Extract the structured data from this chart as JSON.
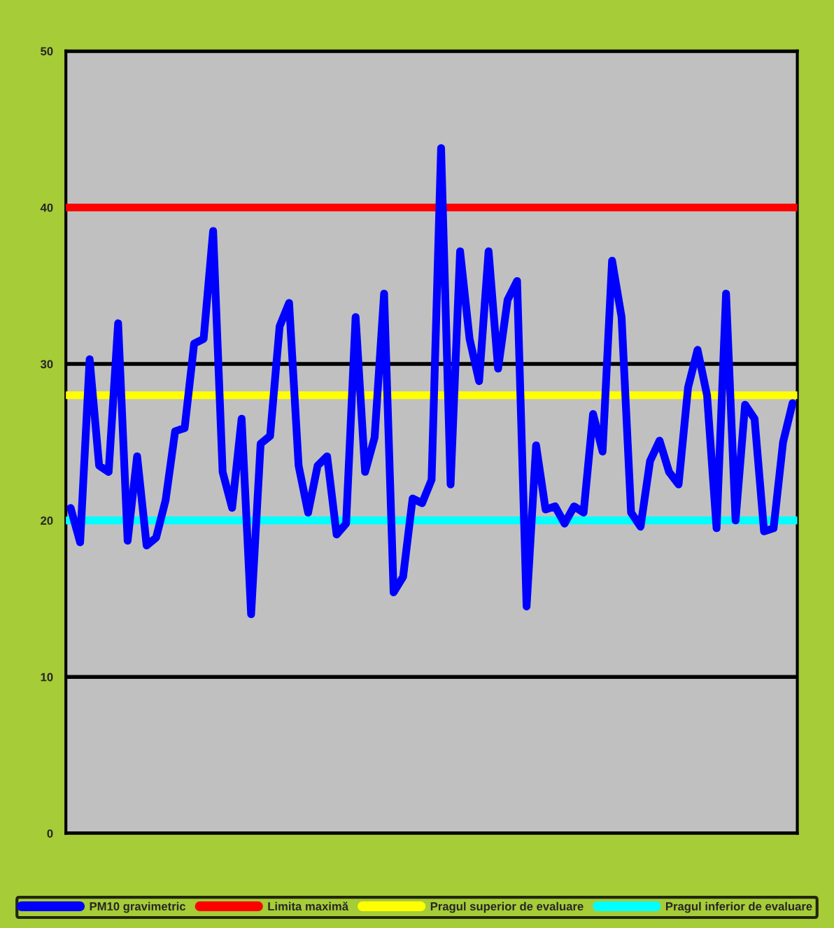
{
  "chart_data": {
    "type": "line",
    "categories": [
      null,
      null,
      null,
      null,
      null,
      null,
      null,
      null,
      null,
      null,
      null,
      null,
      null,
      null,
      null,
      null,
      null,
      null,
      null,
      null,
      null,
      null,
      null,
      null,
      null,
      null,
      null,
      null,
      null,
      null,
      null,
      null,
      null,
      null,
      null,
      null,
      null,
      null,
      null,
      null,
      null,
      null,
      null,
      null,
      null,
      null,
      null,
      null,
      null,
      null,
      null,
      null,
      null,
      null,
      null,
      null,
      null,
      null,
      null,
      null,
      null,
      null,
      null,
      null,
      null,
      null,
      null,
      null,
      null,
      null,
      null,
      null,
      null,
      null,
      null,
      null,
      null
    ],
    "series": [
      {
        "name": "PM10 gravimetric",
        "color": "#0000ff",
        "values": [
          20.8,
          18.6,
          30.3,
          23.5,
          23.1,
          32.6,
          18.7,
          24.1,
          18.4,
          18.9,
          21.3,
          25.7,
          25.9,
          31.3,
          31.6,
          38.5,
          23.1,
          20.8,
          26.5,
          14.0,
          24.9,
          25.4,
          32.4,
          33.9,
          23.5,
          20.5,
          23.5,
          24.1,
          19.1,
          19.8,
          33.0,
          23.1,
          25.3,
          34.5,
          15.4,
          16.4,
          21.4,
          21.1,
          22.6,
          43.8,
          22.3,
          37.2,
          31.6,
          28.9,
          37.2,
          29.7,
          34.1,
          35.3,
          14.5,
          24.8,
          20.7,
          20.9,
          19.8,
          20.9,
          20.5,
          26.8,
          24.4,
          36.6,
          33.0,
          20.5,
          19.6,
          23.8,
          25.1,
          23.1,
          22.3,
          28.5,
          30.9,
          28.0,
          19.5,
          34.5,
          20.0,
          27.4,
          26.5,
          19.3,
          19.5,
          25.0,
          27.5
        ]
      }
    ],
    "ref_lines": [
      {
        "axis": "y",
        "value": 40,
        "label": "Limita maximă",
        "color": "#ff0000"
      },
      {
        "axis": "y",
        "value": 28,
        "label": "Pragul superior de evaluare",
        "color": "#ffff00"
      },
      {
        "axis": "y",
        "value": 20,
        "label": "Pragul inferior de evaluare",
        "color": "#00ffff"
      }
    ],
    "ylim": [
      0,
      50
    ],
    "yticks": [
      0,
      10,
      20,
      30,
      40,
      50
    ],
    "grid": "y",
    "legend": "bottom",
    "marker": "none",
    "line_style": "solid"
  }
}
